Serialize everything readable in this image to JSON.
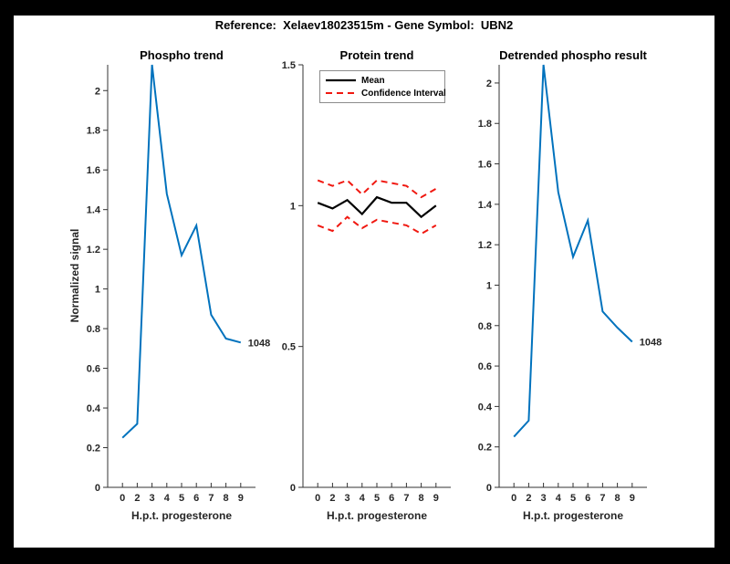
{
  "figure_title": "Reference:  Xelaev18023515m - Gene Symbol:  UBN2",
  "colors": {
    "frame_background": "#000000",
    "figure_background": "#ffffff",
    "line_blue": "#0072BD",
    "mean_black": "#000000",
    "ci_red": "#F01810",
    "axis": "#333333",
    "tick_text": "#262626",
    "legend_border": "#8c8c8c"
  },
  "x_tick_labels": [
    "0",
    "2",
    "3",
    "4",
    "5",
    "6",
    "7",
    "8",
    "9"
  ],
  "chart_data": [
    {
      "type": "line",
      "title": "Phospho trend",
      "xlabel": "H.p.t. progesterone",
      "ylabel": "Normalized signal",
      "x_tick_labels": [
        "0",
        "2",
        "3",
        "4",
        "5",
        "6",
        "7",
        "8",
        "9"
      ],
      "values": [
        0.25,
        0.32,
        2.13,
        1.48,
        1.17,
        1.32,
        0.87,
        0.75,
        0.73
      ],
      "line_color": "#0072BD",
      "end_label": "1048",
      "ylim": [
        0,
        2.13
      ],
      "yticks": [
        0,
        0.2,
        0.4,
        0.6,
        0.8,
        1,
        1.2,
        1.4,
        1.6,
        1.8,
        2
      ],
      "ytick_labels": [
        "0",
        "0.2",
        "0.4",
        "0.6",
        "0.8",
        "1",
        "1.2",
        "1.4",
        "1.6",
        "1.8",
        "2"
      ],
      "grid": false,
      "legend": null
    },
    {
      "type": "line",
      "title": "Protein trend",
      "xlabel": "H.p.t. progesterone",
      "ylabel": "",
      "x_tick_labels": [
        "0",
        "2",
        "3",
        "4",
        "5",
        "6",
        "7",
        "8",
        "9"
      ],
      "series": [
        {
          "name": "Mean",
          "style": "solid",
          "color": "#000000",
          "width": 2.2,
          "values": [
            1.01,
            0.99,
            1.02,
            0.97,
            1.03,
            1.01,
            1.01,
            0.96,
            1.0
          ]
        },
        {
          "name": "Confidence Interval",
          "style": "dashed",
          "color": "#F01810",
          "width": 2,
          "values_upper": [
            1.09,
            1.07,
            1.09,
            1.04,
            1.09,
            1.08,
            1.07,
            1.03,
            1.06
          ],
          "values_lower": [
            0.93,
            0.91,
            0.96,
            0.92,
            0.95,
            0.94,
            0.93,
            0.9,
            0.93
          ]
        }
      ],
      "ylim": [
        0,
        1.5
      ],
      "yticks": [
        0,
        0.5,
        1,
        1.5
      ],
      "ytick_labels": [
        "0",
        "0.5",
        "1",
        "1.5"
      ],
      "grid": false,
      "legend": {
        "position": "top-inside",
        "entries": [
          "Mean",
          "Confidence Interval"
        ]
      }
    },
    {
      "type": "line",
      "title": "Detrended phospho result",
      "xlabel": "H.p.t. progesterone",
      "ylabel": "",
      "x_tick_labels": [
        "0",
        "2",
        "3",
        "4",
        "5",
        "6",
        "7",
        "8",
        "9"
      ],
      "values": [
        0.25,
        0.33,
        2.09,
        1.46,
        1.14,
        1.32,
        0.87,
        0.79,
        0.72
      ],
      "line_color": "#0072BD",
      "end_label": "1048",
      "ylim": [
        0,
        2.09
      ],
      "yticks": [
        0,
        0.2,
        0.4,
        0.6,
        0.8,
        1,
        1.2,
        1.4,
        1.6,
        1.8,
        2
      ],
      "ytick_labels": [
        "0",
        "0.2",
        "0.4",
        "0.6",
        "0.8",
        "1",
        "1.2",
        "1.4",
        "1.6",
        "1.8",
        "2"
      ],
      "grid": false,
      "legend": null
    }
  ]
}
